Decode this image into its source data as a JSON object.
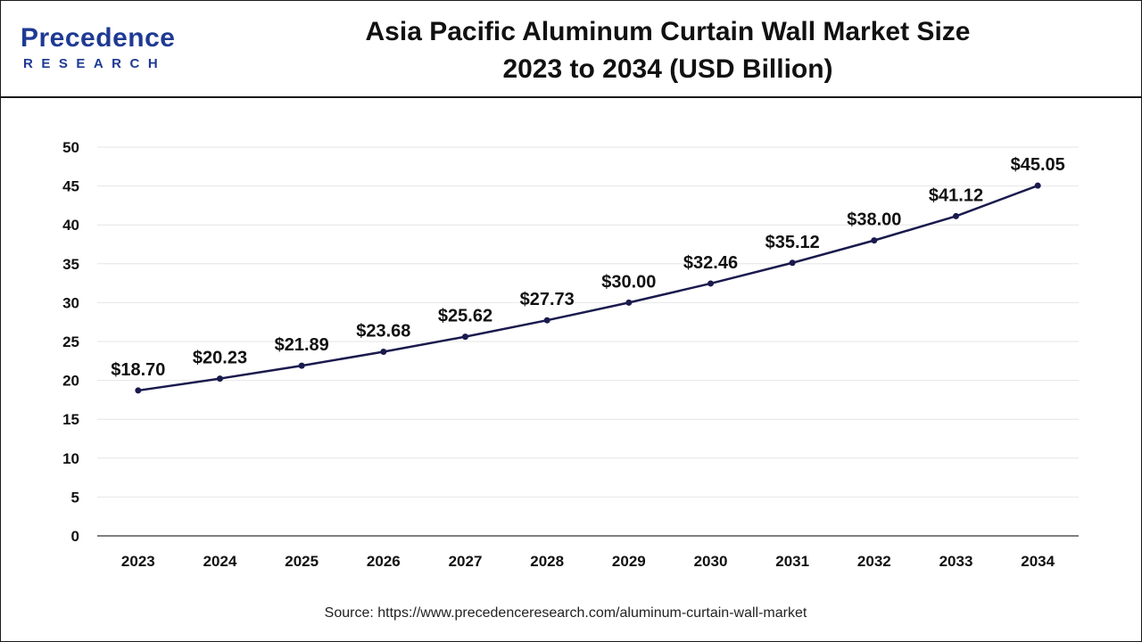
{
  "brand": {
    "name": "Precedence",
    "tagline": "RESEARCH"
  },
  "title": {
    "line1": "Asia Pacific Aluminum Curtain Wall Market Size",
    "line2": "2023 to 2034 (USD Billion)"
  },
  "source_text": "Source: https://www.precedenceresearch.com/aluminum-curtain-wall-market",
  "colors": {
    "line": "#1a1a4e",
    "grid": "#e6e6e6",
    "axis": "#555555",
    "brand": "#1f3a93"
  },
  "chart_data": {
    "type": "line",
    "categories": [
      "2023",
      "2024",
      "2025",
      "2026",
      "2027",
      "2028",
      "2029",
      "2030",
      "2031",
      "2032",
      "2033",
      "2034"
    ],
    "values": [
      18.7,
      20.23,
      21.89,
      23.68,
      25.62,
      27.73,
      30.0,
      32.46,
      35.12,
      38.0,
      41.12,
      45.05
    ],
    "data_labels": [
      "$18.70",
      "$20.23",
      "$21.89",
      "$23.68",
      "$25.62",
      "$27.73",
      "$30.00",
      "$32.46",
      "$35.12",
      "$38.00",
      "$41.12",
      "$45.05"
    ],
    "y_ticks": [
      0,
      5,
      10,
      15,
      20,
      25,
      30,
      35,
      40,
      45,
      50
    ],
    "ylim": [
      0,
      50
    ],
    "grid": true,
    "legend": "none"
  }
}
